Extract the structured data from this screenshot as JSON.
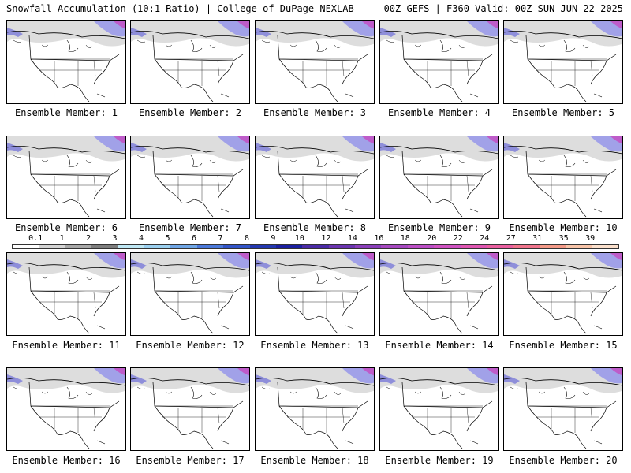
{
  "header": {
    "title_left": "Snowfall Accumulation (10:1 Ratio) | College of DuPage NEXLAB",
    "title_right": "00Z GEFS | F360 Valid: 00Z SUN JUN 22 2025"
  },
  "members": [
    {
      "label": "Ensemble Member: 1"
    },
    {
      "label": "Ensemble Member: 2"
    },
    {
      "label": "Ensemble Member: 3"
    },
    {
      "label": "Ensemble Member: 4"
    },
    {
      "label": "Ensemble Member: 5"
    },
    {
      "label": "Ensemble Member: 6"
    },
    {
      "label": "Ensemble Member: 7"
    },
    {
      "label": "Ensemble Member: 8"
    },
    {
      "label": "Ensemble Member: 9"
    },
    {
      "label": "Ensemble Member: 10"
    },
    {
      "label": "Ensemble Member: 11"
    },
    {
      "label": "Ensemble Member: 12"
    },
    {
      "label": "Ensemble Member: 13"
    },
    {
      "label": "Ensemble Member: 14"
    },
    {
      "label": "Ensemble Member: 15"
    },
    {
      "label": "Ensemble Member: 16"
    },
    {
      "label": "Ensemble Member: 17"
    },
    {
      "label": "Ensemble Member: 18"
    },
    {
      "label": "Ensemble Member: 19"
    },
    {
      "label": "Ensemble Member: 20"
    }
  ],
  "colorbar": {
    "labels": [
      "0.1",
      "1",
      "2",
      "3",
      "4",
      "5",
      "6",
      "7",
      "8",
      "9",
      "10",
      "12",
      "14",
      "16",
      "18",
      "20",
      "22",
      "24",
      "27",
      "31",
      "35",
      "39"
    ],
    "colors": [
      "#ffffff",
      "#d4d4d4",
      "#a8a8a8",
      "#7e7e7e",
      "#bfe8f5",
      "#9bd0f0",
      "#6fa6e6",
      "#4a78da",
      "#3254c8",
      "#2338b0",
      "#1a1fa0",
      "#4a2aa6",
      "#6a34b0",
      "#8a3eba",
      "#a648c0",
      "#bc4ec6",
      "#d052c2",
      "#e056b2",
      "#ea5fa0",
      "#f0748c",
      "#f49a88",
      "#f8c4a8",
      "#fbe0cc"
    ]
  }
}
